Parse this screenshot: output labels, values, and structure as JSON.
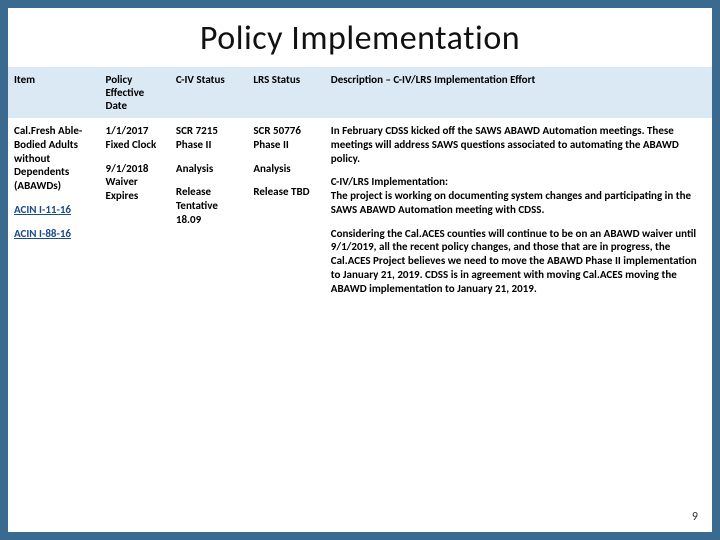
{
  "colors": {
    "border": "#3a6a8f",
    "header_bg": "#dbe9f4",
    "link": "#1a4a8a",
    "text": "#000000",
    "background": "#ffffff"
  },
  "title": "Policy Implementation",
  "page_number": "9",
  "table": {
    "headers": {
      "item": "Item",
      "policy_date": "Policy Effective Date",
      "civ_status": "C-IV Status",
      "lrs_status": "LRS Status",
      "description": "Description – C-IV/LRS Implementation Effort"
    },
    "row": {
      "item": {
        "line1": "Cal.Fresh Able-Bodied Adults without Dependents (ABAWDs)",
        "link1": "ACIN I-11-16",
        "link2": "ACIN I-88-16"
      },
      "policy_date": {
        "block1": "1/1/2017 Fixed Clock",
        "block2": "9/1/2018 Waiver Expires"
      },
      "civ_status": {
        "line1": "SCR 7215 Phase II",
        "line2": "Analysis",
        "line3": "Release Tentative 18.09"
      },
      "lrs_status": {
        "line1": "SCR 50776 Phase II",
        "line2": "Analysis",
        "line3": "Release TBD"
      },
      "description": {
        "p1": "In February CDSS kicked off the SAWS ABAWD Automation meetings. These meetings will address SAWS questions associated to automating the ABAWD policy.",
        "p2a": "C-IV/LRS Implementation:",
        "p2b": "The project is working on documenting  system changes and participating in the SAWS ABAWD Automation meeting with CDSS.",
        "p3": "Considering the Cal.ACES counties will continue to be on an ABAWD waiver until 9/1/2019, all the recent policy changes, and those that are in progress, the Cal.ACES Project believes we need to move the ABAWD Phase II implementation to January 21, 2019. CDSS is in agreement with moving Cal.ACES moving the ABAWD implementation to January 21, 2019."
      }
    }
  }
}
